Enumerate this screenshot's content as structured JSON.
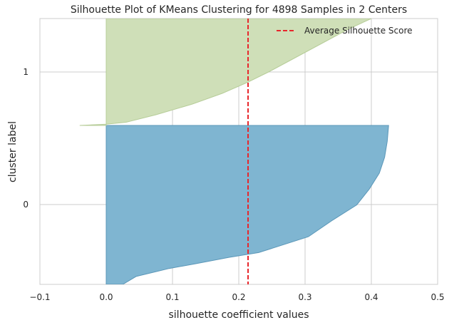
{
  "chart_data": {
    "type": "area",
    "title": "Silhouette Plot of KMeans Clustering for 4898 Samples in 2 Centers",
    "xlabel": "silhouette coefficient values",
    "ylabel": "cluster label",
    "xlim": [
      -0.1,
      0.5
    ],
    "xticks": [
      -0.1,
      0.0,
      0.1,
      0.2,
      0.3,
      0.4,
      0.5
    ],
    "xtick_labels": [
      "−0.1",
      "0.0",
      "0.1",
      "0.2",
      "0.3",
      "0.4",
      "0.5"
    ],
    "ytick_labels": [
      "0",
      "1"
    ],
    "grid": true,
    "legend": {
      "placement": "top-right",
      "entries": [
        "Average Silhouette Score"
      ]
    },
    "average_silhouette_score": 0.214,
    "clusters": [
      {
        "label": "0",
        "color": "#7fb5d1",
        "edge_color": "#5b97b8",
        "profile": [
          [
            0.0,
            0.025
          ],
          [
            0.05,
            0.045
          ],
          [
            0.1,
            0.095
          ],
          [
            0.13,
            0.135
          ],
          [
            0.17,
            0.185
          ],
          [
            0.2,
            0.23
          ],
          [
            0.3,
            0.305
          ],
          [
            0.4,
            0.34
          ],
          [
            0.5,
            0.378
          ],
          [
            0.6,
            0.397
          ],
          [
            0.7,
            0.412
          ],
          [
            0.8,
            0.42
          ],
          [
            0.9,
            0.424
          ],
          [
            1.0,
            0.426
          ]
        ]
      },
      {
        "label": "1",
        "color": "#cfdfb8",
        "edge_color": "#b7cd99",
        "profile": [
          [
            0.0,
            -0.04
          ],
          [
            0.012,
            0.0
          ],
          [
            0.03,
            0.03
          ],
          [
            0.1,
            0.075
          ],
          [
            0.2,
            0.13
          ],
          [
            0.3,
            0.175
          ],
          [
            0.4,
            0.212
          ],
          [
            0.5,
            0.245
          ],
          [
            0.6,
            0.275
          ],
          [
            0.7,
            0.305
          ],
          [
            0.8,
            0.335
          ],
          [
            0.9,
            0.365
          ],
          [
            1.0,
            0.4
          ]
        ]
      }
    ]
  },
  "colors": {
    "average_line": "#e8262b",
    "grid": "#cccccc",
    "axes_frame": "#cccccc"
  }
}
